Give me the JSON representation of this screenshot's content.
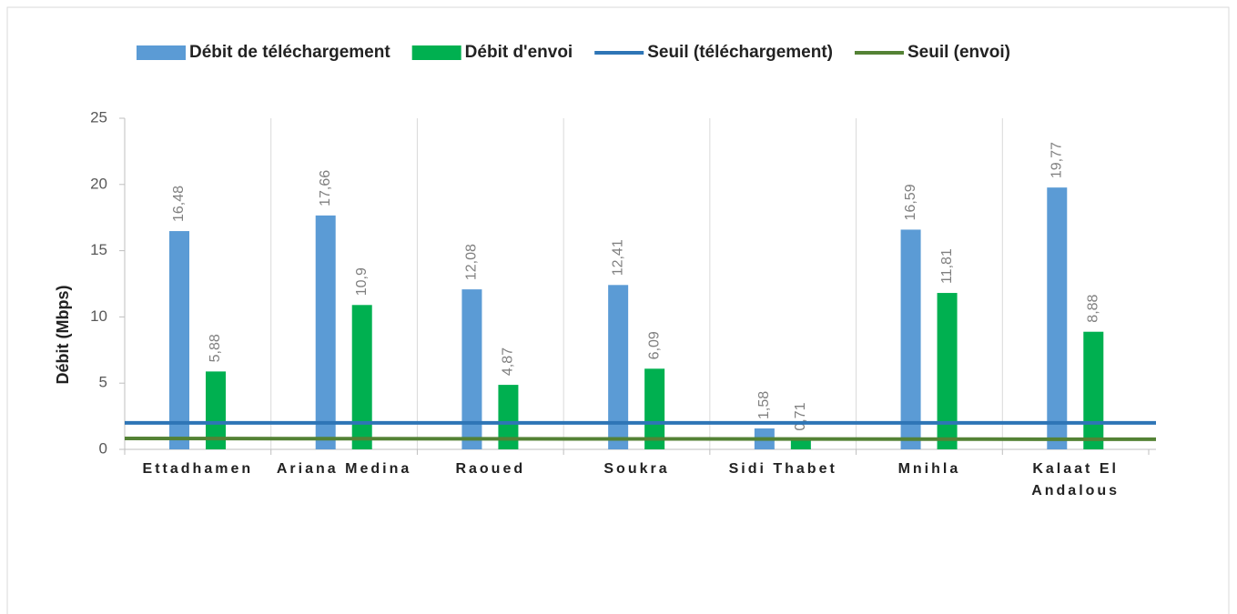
{
  "chart_data": {
    "type": "bar",
    "y_label": "Débit (Mbps)",
    "categories": [
      "Ettadhamen",
      "Ariana Medina",
      "Raoued",
      "Soukra",
      "Sidi Thabet",
      "Mnihla",
      "Kalaat El Andalous"
    ],
    "series": [
      {
        "name": "Débit de téléchargement",
        "color": "#5b9bd5",
        "values": [
          16.48,
          17.66,
          12.08,
          12.41,
          1.58,
          16.59,
          19.77
        ],
        "value_labels": [
          "16,48",
          "17,66",
          "12,08",
          "12,41",
          "1,58",
          "16,59",
          "19,77"
        ]
      },
      {
        "name": "Débit d'envoi",
        "color": "#00b050",
        "values": [
          5.88,
          10.9,
          4.87,
          6.09,
          0.71,
          11.81,
          8.88
        ],
        "value_labels": [
          "5,88",
          "10,9",
          "4,87",
          "6,09",
          "0,71",
          "11,81",
          "8,88"
        ]
      },
      {
        "name": "Seuil (téléchargement)",
        "type": "line",
        "color": "#2e75b6",
        "values": [
          2,
          2,
          2,
          2,
          2,
          2,
          2
        ]
      },
      {
        "name": "Seuil (envoi)",
        "type": "line",
        "color": "#548235",
        "values": [
          0.82,
          0.81,
          0.8,
          0.79,
          0.78,
          0.77,
          0.76
        ]
      }
    ],
    "ylim": [
      0,
      25
    ],
    "yticks": [
      0,
      5,
      10,
      15,
      20,
      25
    ],
    "legend": "top"
  }
}
